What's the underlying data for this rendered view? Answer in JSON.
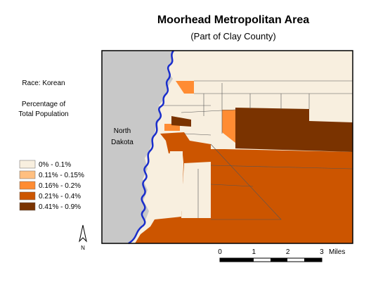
{
  "header": {
    "title": "Moorhead Metropolitan Area",
    "subtitle": "(Part of Clay County)"
  },
  "legend": {
    "heading": "Race: Korean",
    "subheading": [
      "Percentage of",
      "Total Population"
    ],
    "items": [
      {
        "label": "0% - 0.1%",
        "color": "#f8efdf"
      },
      {
        "label": "0.11% - 0.15%",
        "color": "#ffbf80"
      },
      {
        "label": "0.16% - 0.2%",
        "color": "#ff8c33"
      },
      {
        "label": "0.21% - 0.4%",
        "color": "#cc5500"
      },
      {
        "label": "0.41% - 0.9%",
        "color": "#7a3300"
      }
    ]
  },
  "map": {
    "state_label": [
      "North",
      "Dakota"
    ]
  },
  "north_label": "N",
  "scale": {
    "labels": [
      "0",
      "1",
      "2",
      "3"
    ],
    "unit": "Miles"
  }
}
